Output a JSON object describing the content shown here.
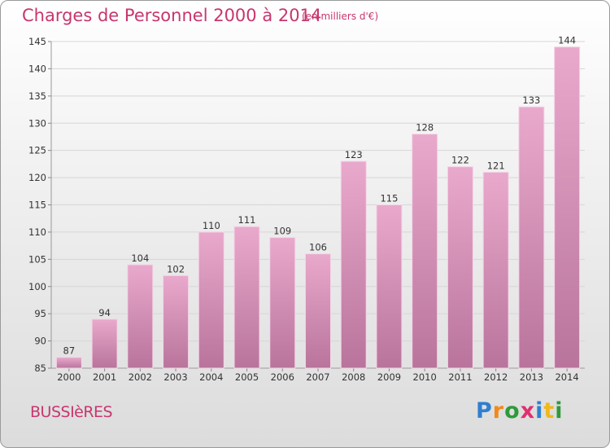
{
  "header": {
    "title": "Charges de Personnel 2000 à 2014",
    "subtitle": "(en milliers d'€)"
  },
  "footer": {
    "place": "BUSSIèRES",
    "logo_letters": [
      "P",
      "r",
      "o",
      "x",
      "i",
      "t",
      "i"
    ],
    "logo_colors": [
      "#2f7fd0",
      "#f08a1a",
      "#2f9a3a",
      "#e0306e",
      "#2f7fd0",
      "#f0b81a",
      "#2f9a3a"
    ]
  },
  "colors": {
    "bar_top": "#e9a9cc",
    "bar_bottom": "#b9749c",
    "title": "#c8366e"
  },
  "chart_data": {
    "type": "bar",
    "title": "Charges de Personnel 2000 à 2014",
    "subtitle": "(en milliers d'€)",
    "categories": [
      "2000",
      "2001",
      "2002",
      "2003",
      "2004",
      "2005",
      "2006",
      "2007",
      "2008",
      "2009",
      "2010",
      "2011",
      "2012",
      "2013",
      "2014"
    ],
    "values": [
      87,
      94,
      104,
      102,
      110,
      111,
      109,
      106,
      123,
      115,
      128,
      122,
      121,
      133,
      144
    ],
    "ylim": [
      85,
      145
    ],
    "yticks": [
      85,
      90,
      95,
      100,
      105,
      110,
      115,
      120,
      125,
      130,
      135,
      140,
      145
    ],
    "grid": true,
    "legend": "none"
  }
}
